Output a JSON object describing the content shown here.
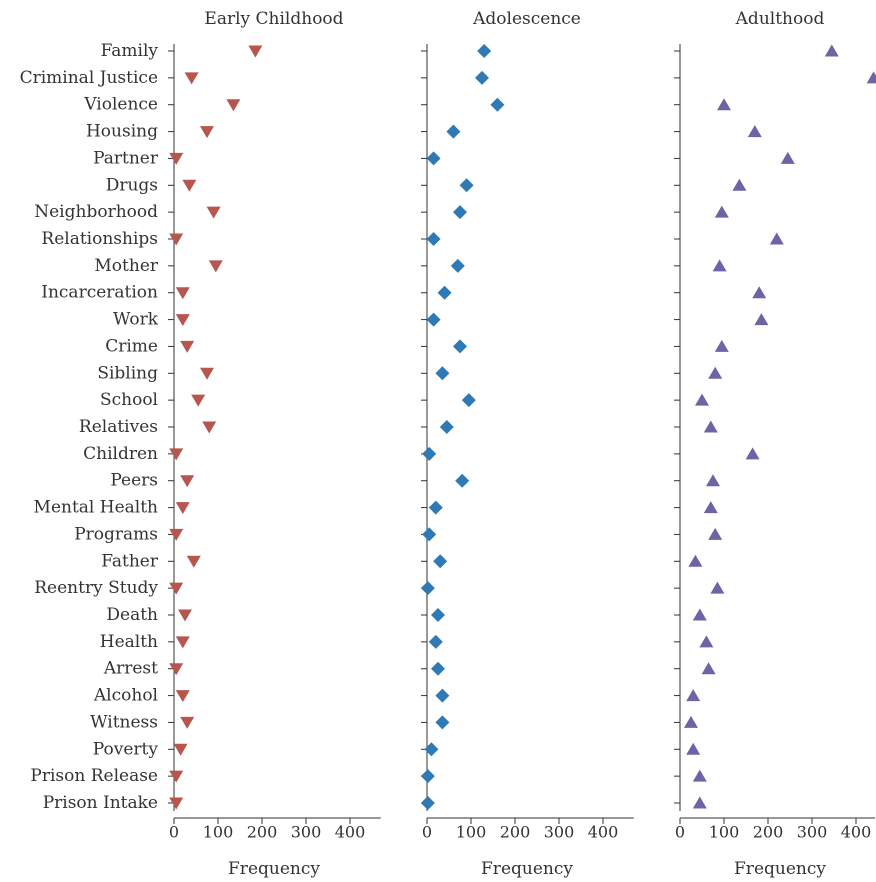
{
  "chart_data": {
    "type": "scatter",
    "categories": [
      "Family",
      "Criminal Justice",
      "Violence",
      "Housing",
      "Partner",
      "Drugs",
      "Neighborhood",
      "Relationships",
      "Mother",
      "Incarceration",
      "Work",
      "Crime",
      "Sibling",
      "School",
      "Relatives",
      "Children",
      "Peers",
      "Mental Health",
      "Programs",
      "Father",
      "Reentry Study",
      "Death",
      "Health",
      "Arrest",
      "Alcohol",
      "Witness",
      "Poverty",
      "Prison Release",
      "Prison Intake"
    ],
    "xlabel": "Frequency",
    "xlim": [
      0,
      470
    ],
    "xticks": [
      0,
      100,
      200,
      300,
      400
    ],
    "series": [
      {
        "name": "Early Childhood",
        "marker": "triangle-down",
        "color": "#b5574f",
        "values": [
          185,
          40,
          135,
          75,
          5,
          35,
          90,
          5,
          95,
          20,
          20,
          30,
          75,
          55,
          80,
          5,
          30,
          20,
          5,
          45,
          5,
          25,
          20,
          5,
          20,
          30,
          15,
          5,
          5
        ]
      },
      {
        "name": "Adolescence",
        "marker": "diamond",
        "color": "#2f7ab5",
        "values": [
          130,
          125,
          160,
          60,
          15,
          90,
          75,
          15,
          70,
          40,
          15,
          75,
          35,
          95,
          45,
          5,
          80,
          20,
          5,
          30,
          2,
          25,
          20,
          25,
          35,
          35,
          10,
          2,
          2
        ]
      },
      {
        "name": "Adulthood",
        "marker": "triangle-up",
        "color": "#6b64a5",
        "values": [
          345,
          440,
          100,
          170,
          245,
          135,
          95,
          220,
          90,
          180,
          185,
          95,
          80,
          50,
          70,
          165,
          75,
          70,
          80,
          35,
          85,
          45,
          60,
          65,
          30,
          25,
          30,
          45,
          45
        ]
      }
    ]
  }
}
